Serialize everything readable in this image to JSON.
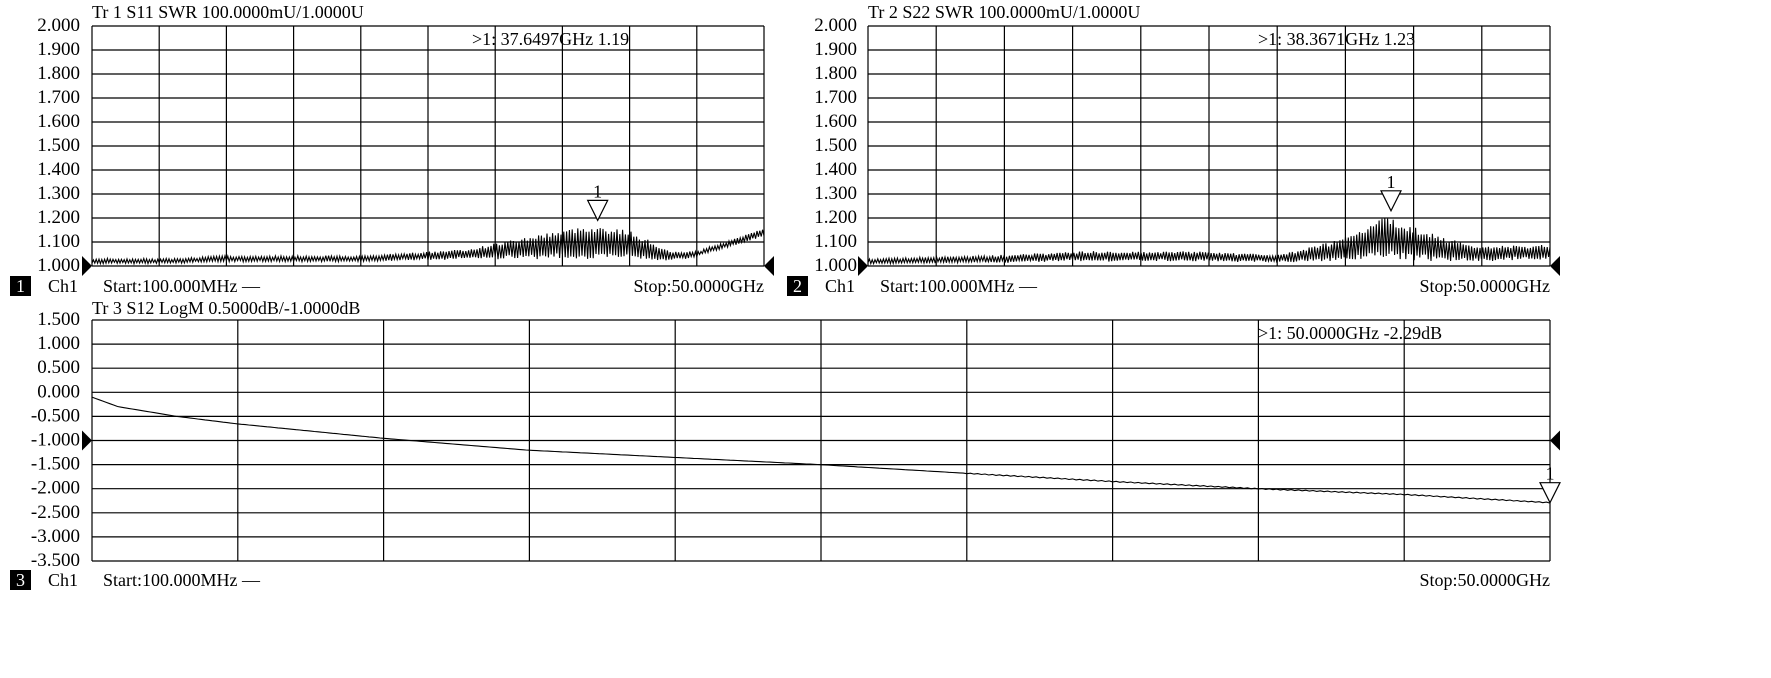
{
  "chart_data": [
    {
      "type": "line",
      "title": "Tr 1  S11 SWR 100.0000mU/1.0000U",
      "trace": "Tr 1",
      "parameter": "S11",
      "format": "SWR",
      "scale": "100.0000mU",
      "reference": "1.0000U",
      "ylim": [
        1.0,
        2.0
      ],
      "xlim_ghz": [
        0.1,
        50
      ],
      "y_tick_labels": [
        "2.000",
        "1.900",
        "1.800",
        "1.700",
        "1.600",
        "1.500",
        "1.400",
        "1.300",
        "1.200",
        "1.100",
        "1.000"
      ],
      "grid": true,
      "envelope": {
        "x_ghz": [
          0.1,
          5,
          10,
          20,
          28,
          33,
          37,
          40,
          43,
          45,
          50
        ],
        "center": [
          1.02,
          1.02,
          1.03,
          1.03,
          1.05,
          1.08,
          1.1,
          1.09,
          1.04,
          1.05,
          1.14
        ],
        "ripple": [
          0.01,
          0.01,
          0.012,
          0.012,
          0.02,
          0.05,
          0.07,
          0.06,
          0.02,
          0.01,
          0.015
        ]
      },
      "marker": {
        "label": "1",
        "readout": ">1:   37.6497GHz 1.19",
        "x_ghz": 37.6497,
        "y": 1.19
      },
      "channel": {
        "number": "1",
        "name": "Ch1",
        "start": "Start:100.000MHz —",
        "stop": "Stop:50.0000GHz"
      }
    },
    {
      "type": "line",
      "title": "Tr 2  S22 SWR 100.0000mU/1.0000U",
      "trace": "Tr 2",
      "parameter": "S22",
      "format": "SWR",
      "scale": "100.0000mU",
      "reference": "1.0000U",
      "ylim": [
        1.0,
        2.0
      ],
      "xlim_ghz": [
        0.1,
        50
      ],
      "y_tick_labels": [
        "2.000",
        "1.900",
        "1.800",
        "1.700",
        "1.600",
        "1.500",
        "1.400",
        "1.300",
        "1.200",
        "1.100",
        "1.000"
      ],
      "grid": true,
      "envelope": {
        "x_ghz": [
          0.1,
          10,
          15,
          25,
          30,
          34,
          38,
          42,
          45,
          50
        ],
        "center": [
          1.02,
          1.03,
          1.04,
          1.04,
          1.03,
          1.06,
          1.12,
          1.07,
          1.05,
          1.06
        ],
        "ripple": [
          0.01,
          0.015,
          0.02,
          0.02,
          0.015,
          0.04,
          0.09,
          0.05,
          0.03,
          0.03
        ]
      },
      "marker": {
        "label": "1",
        "readout": ">1:   38.3671GHz 1.23",
        "x_ghz": 38.3671,
        "y": 1.23
      },
      "channel": {
        "number": "2",
        "name": "Ch1",
        "start": "Start:100.000MHz —",
        "stop": "Stop:50.0000GHz"
      }
    },
    {
      "type": "line",
      "title": "Tr 3  S12 LogM 0.5000dB/-1.0000dB",
      "trace": "Tr 3",
      "parameter": "S12",
      "format": "LogM",
      "scale": "0.5000dB",
      "reference": "-1.0000dB",
      "ylim": [
        -3.5,
        1.5
      ],
      "xlim_ghz": [
        0.1,
        50
      ],
      "y_tick_labels": [
        "1.500",
        "1.000",
        "0.500",
        "0.000",
        "-0.500",
        "-1.000",
        "-1.500",
        "-2.000",
        "-2.500",
        "-3.000",
        "-3.500"
      ],
      "grid": true,
      "x_ghz": [
        0.1,
        1,
        3,
        5,
        10,
        15,
        20,
        25,
        30,
        35,
        40,
        45,
        50
      ],
      "y_db": [
        -0.1,
        -0.3,
        -0.5,
        -0.65,
        -0.95,
        -1.2,
        -1.35,
        -1.5,
        -1.68,
        -1.85,
        -2.0,
        -2.12,
        -2.29
      ],
      "marker": {
        "label": "1",
        "readout": ">1:   50.0000GHz -2.29dB",
        "x_ghz": 50,
        "y": -2.29
      },
      "channel": {
        "number": "3",
        "name": "Ch1",
        "start": "Start:100.000MHz —",
        "stop": "Stop:50.0000GHz"
      }
    }
  ]
}
